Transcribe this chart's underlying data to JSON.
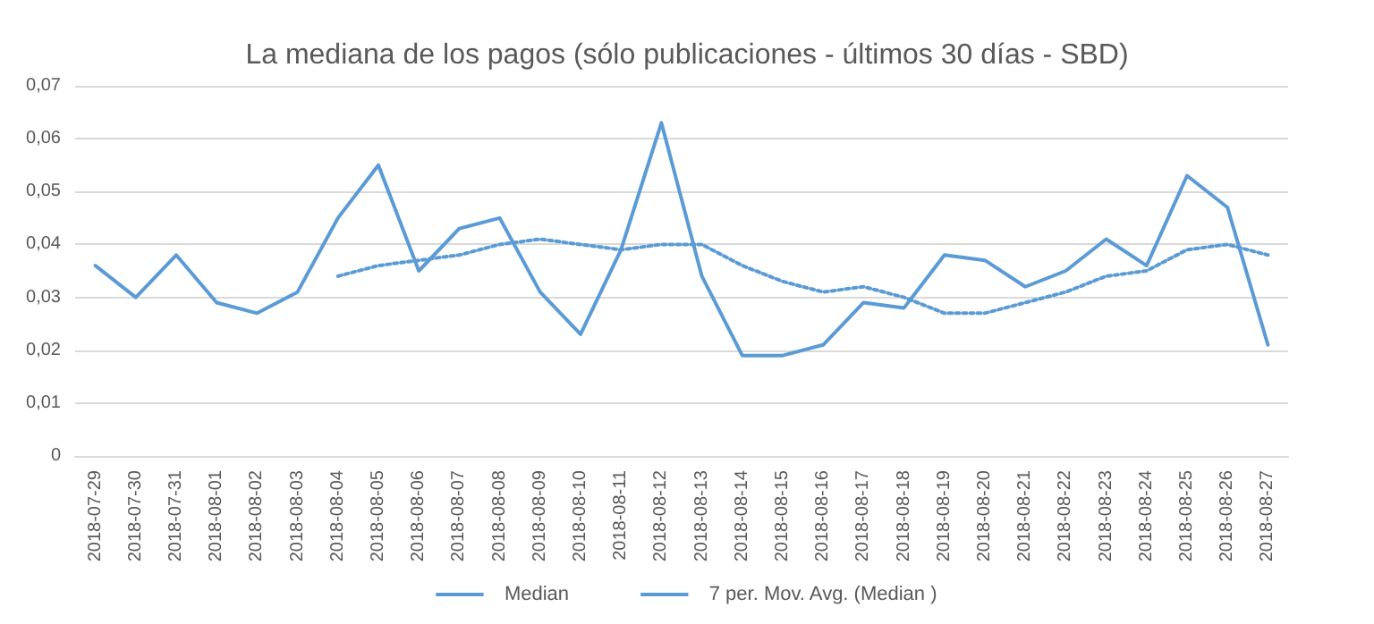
{
  "chart_data": {
    "type": "line",
    "title": "La mediana de los pagos (sólo publicaciones - últimos 30 días - SBD)",
    "categories": [
      "2018-07-29",
      "2018-07-30",
      "2018-07-31",
      "2018-08-01",
      "2018-08-02",
      "2018-08-03",
      "2018-08-04",
      "2018-08-05",
      "2018-08-06",
      "2018-08-07",
      "2018-08-08",
      "2018-08-09",
      "2018-08-10",
      "2018-08-11",
      "2018-08-12",
      "2018-08-13",
      "2018-08-14",
      "2018-08-15",
      "2018-08-16",
      "2018-08-17",
      "2018-08-18",
      "2018-08-19",
      "2018-08-20",
      "2018-08-21",
      "2018-08-22",
      "2018-08-23",
      "2018-08-24",
      "2018-08-25",
      "2018-08-26",
      "2018-08-27"
    ],
    "series": [
      {
        "name": "Median",
        "color": "#5b9bd5",
        "line_style": "solid",
        "values": [
          0.036,
          0.03,
          0.038,
          0.029,
          0.027,
          0.031,
          0.045,
          0.055,
          0.035,
          0.043,
          0.045,
          0.031,
          0.023,
          0.039,
          0.063,
          0.034,
          0.019,
          0.019,
          0.021,
          0.029,
          0.028,
          0.038,
          0.037,
          0.032,
          0.035,
          0.041,
          0.036,
          0.053,
          0.047,
          0.021
        ]
      },
      {
        "name": "7 per. Mov. Avg. (Median )",
        "color": "#5b9bd5",
        "line_style": "dotted",
        "values": [
          null,
          null,
          null,
          null,
          null,
          null,
          0.034,
          0.036,
          0.037,
          0.038,
          0.04,
          0.041,
          0.04,
          0.039,
          0.04,
          0.04,
          0.036,
          0.033,
          0.031,
          0.032,
          0.03,
          0.027,
          0.027,
          0.029,
          0.031,
          0.034,
          0.035,
          0.039,
          0.04,
          0.038
        ]
      }
    ],
    "ylim": [
      0,
      0.07
    ],
    "yticks": [
      0,
      {
        "value": 0.01,
        "label": "0,01"
      },
      {
        "value": 0.02,
        "label": "0,02"
      },
      {
        "value": 0.03,
        "label": "0,03"
      },
      {
        "value": 0.04,
        "label": "0,04"
      },
      {
        "value": 0.05,
        "label": "0,05"
      },
      {
        "value": 0.06,
        "label": "0,06"
      },
      {
        "value": 0.07,
        "label": "0,07"
      }
    ],
    "grid": "y",
    "legend": "bottom",
    "marker": "none"
  }
}
